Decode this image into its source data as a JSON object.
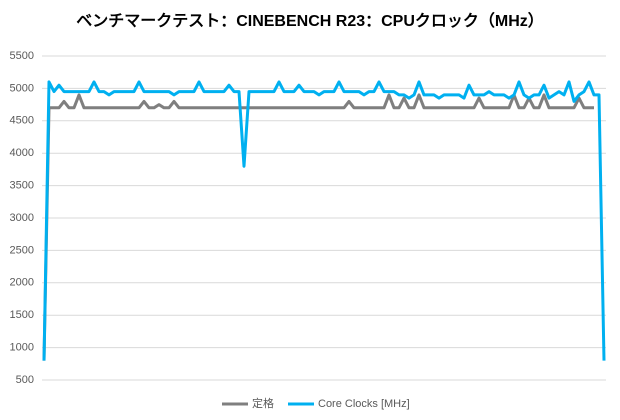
{
  "chart_data": {
    "type": "line",
    "title": "ベンチマークテスト：CINEBENCH R23：CPUクロック（MHz）",
    "categories": [
      null,
      null,
      null,
      null,
      null,
      null,
      null,
      null,
      null,
      null,
      null,
      null,
      null,
      null,
      null,
      null,
      null,
      null,
      null,
      null,
      null,
      null,
      null,
      null,
      null,
      null,
      null,
      null,
      null,
      null,
      null,
      null,
      null,
      null,
      null,
      null,
      null,
      null,
      null,
      null,
      null,
      null,
      null,
      null,
      null,
      null,
      null,
      null,
      null,
      null,
      null,
      null,
      null,
      null,
      null,
      null,
      null,
      null,
      null,
      null,
      null,
      null,
      null,
      null,
      null,
      null,
      null,
      null,
      null,
      null,
      null,
      null,
      null,
      null,
      null,
      null,
      null,
      null,
      null,
      null,
      null,
      null,
      null,
      null,
      null,
      null,
      null,
      null,
      null,
      null,
      null,
      null,
      null,
      null,
      null,
      null,
      null,
      null,
      null,
      null,
      null,
      null,
      null,
      null,
      null,
      null,
      null,
      null,
      null,
      null,
      null,
      null,
      null
    ],
    "series": [
      {
        "name": "定格",
        "color": "#7f7f7f",
        "values": [
          800,
          4700,
          4700,
          4700,
          4800,
          4700,
          4700,
          4900,
          4700,
          4700,
          4700,
          4700,
          4700,
          4700,
          4700,
          4700,
          4700,
          4700,
          4700,
          4700,
          4800,
          4700,
          4700,
          4750,
          4700,
          4700,
          4800,
          4700,
          4700,
          4700,
          4700,
          4700,
          4700,
          4700,
          4700,
          4700,
          4700,
          4700,
          4700,
          4700,
          4700,
          4700,
          4700,
          4700,
          4700,
          4700,
          4700,
          4700,
          4700,
          4700,
          4700,
          4700,
          4700,
          4700,
          4700,
          4700,
          4700,
          4700,
          4700,
          4700,
          4700,
          4800,
          4700,
          4700,
          4700,
          4700,
          4700,
          4700,
          4700,
          4900,
          4700,
          4700,
          4850,
          4700,
          4700,
          4900,
          4700,
          4700,
          4700,
          4700,
          4700,
          4700,
          4700,
          4700,
          4700,
          4700,
          4700,
          4850,
          4700,
          4700,
          4700,
          4700,
          4700,
          4700,
          4900,
          4700,
          4700,
          4850,
          4700,
          4700,
          4900,
          4700,
          4700,
          4700,
          4700,
          4700,
          4700,
          4850,
          4700,
          4700,
          4700,
          null,
          null
        ]
      },
      {
        "name": "Core Clocks [MHz]",
        "color": "#00b0f0",
        "values": [
          800,
          5100,
          4950,
          5050,
          4950,
          4950,
          4950,
          4950,
          4950,
          4950,
          5100,
          4950,
          4950,
          4900,
          4950,
          4950,
          4950,
          4950,
          4950,
          5100,
          4950,
          4950,
          4950,
          4950,
          4950,
          4950,
          4900,
          4950,
          4950,
          4950,
          4950,
          5100,
          4950,
          4950,
          4950,
          4950,
          4950,
          5050,
          4950,
          4950,
          3800,
          4950,
          4950,
          4950,
          4950,
          4950,
          4950,
          5100,
          4950,
          4950,
          4950,
          5050,
          4950,
          4950,
          4950,
          4900,
          4950,
          4950,
          4950,
          5100,
          4950,
          4950,
          4950,
          4950,
          4900,
          4950,
          4950,
          5100,
          4950,
          4950,
          4950,
          4900,
          4900,
          4850,
          4900,
          5100,
          4900,
          4900,
          4900,
          4850,
          4900,
          4900,
          4900,
          4900,
          4850,
          5050,
          4900,
          4900,
          4900,
          4950,
          4900,
          4900,
          4900,
          4850,
          4900,
          5100,
          4900,
          4850,
          4900,
          4900,
          5050,
          4850,
          4900,
          4950,
          4900,
          5100,
          4800,
          4900,
          4950,
          5100,
          4900,
          4900,
          800
        ]
      }
    ],
    "ylim": [
      500,
      5500
    ],
    "yticks": [
      500,
      1000,
      1500,
      2000,
      2500,
      3000,
      3500,
      4000,
      4500,
      5000,
      5500
    ],
    "grid": true,
    "legend": "bottom"
  }
}
